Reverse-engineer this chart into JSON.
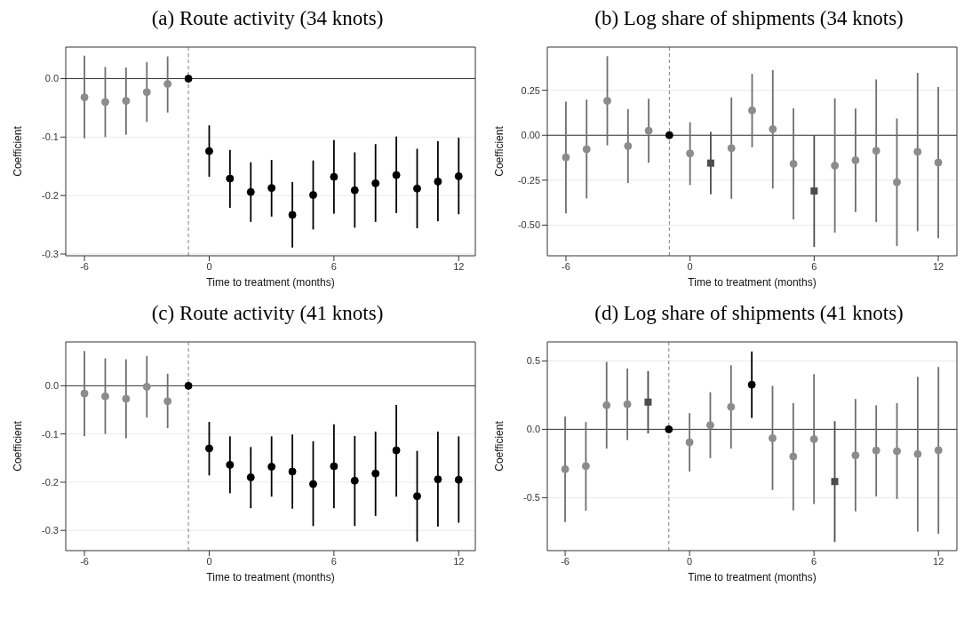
{
  "chart_data": [
    {
      "type": "scatter",
      "title": "(a) Route activity (34 knots)",
      "xlabel": "Time to treatment (months)",
      "ylabel": "Coefficient",
      "xlim": [
        -6.9,
        12.8
      ],
      "ylim": [
        -0.303,
        0.054
      ],
      "xticks": [
        -6,
        0,
        6,
        12
      ],
      "yticks": [
        {
          "value": -0.3,
          "label": "-0.3"
        },
        {
          "value": -0.2,
          "label": "-0.2"
        },
        {
          "value": -0.1,
          "label": "-0.1"
        },
        {
          "value": 0,
          "label": "0.0"
        }
      ],
      "grid": "y",
      "ref_lines": [
        {
          "axis": "x",
          "value": -1,
          "color": "#808080",
          "line_style": "dashed"
        },
        {
          "axis": "y",
          "value": 0,
          "color": "#333333",
          "line_style": "solid"
        }
      ],
      "series": [
        {
          "color": "#8c8c8c",
          "marker": "circle",
          "x": [
            -6,
            -5,
            -4,
            -3,
            -2
          ],
          "values": [
            -0.032,
            -0.04,
            -0.038,
            -0.023,
            -0.009
          ],
          "errors": [
            [
              -0.102,
              0.039
            ],
            [
              -0.1,
              0.02
            ],
            [
              -0.096,
              0.019
            ],
            [
              -0.074,
              0.028
            ],
            [
              -0.058,
              0.038
            ]
          ]
        },
        {
          "color": "#000000",
          "marker": "circle",
          "x": [
            -1,
            0,
            1,
            2,
            3,
            4,
            5,
            6,
            7,
            8,
            9,
            10,
            11,
            12
          ],
          "values": [
            0,
            -0.124,
            -0.171,
            -0.194,
            -0.187,
            -0.233,
            -0.199,
            -0.168,
            -0.191,
            -0.179,
            -0.165,
            -0.188,
            -0.176,
            -0.167
          ],
          "errors": [
            null,
            [
              -0.168,
              -0.08
            ],
            [
              -0.221,
              -0.122
            ],
            [
              -0.245,
              -0.143
            ],
            [
              -0.236,
              -0.139
            ],
            [
              -0.289,
              -0.177
            ],
            [
              -0.258,
              -0.14
            ],
            [
              -0.231,
              -0.105
            ],
            [
              -0.255,
              -0.126
            ],
            [
              -0.245,
              -0.112
            ],
            [
              -0.23,
              -0.099
            ],
            [
              -0.256,
              -0.12
            ],
            [
              -0.244,
              -0.107
            ],
            [
              -0.232,
              -0.101
            ]
          ]
        }
      ]
    },
    {
      "type": "scatter",
      "title": "(b) Log share of shipments (34 knots)",
      "xlabel": "Time to treatment (months)",
      "ylabel": "Coefficient",
      "xlim": [
        -6.9,
        12.9
      ],
      "ylim": [
        -0.67,
        0.49
      ],
      "xticks": [
        -6,
        0,
        6,
        12
      ],
      "yticks": [
        {
          "value": -0.5,
          "label": "-0.50"
        },
        {
          "value": -0.25,
          "label": "-0.25"
        },
        {
          "value": 0,
          "label": "0.00"
        },
        {
          "value": 0.25,
          "label": "0.25"
        }
      ],
      "grid": "y",
      "ref_lines": [
        {
          "axis": "x",
          "value": -1,
          "color": "#808080",
          "line_style": "dashed"
        },
        {
          "axis": "y",
          "value": 0,
          "color": "#333333",
          "line_style": "solid"
        }
      ],
      "series": [
        {
          "color": "#8c8c8c",
          "marker": "circle",
          "x": [
            -6,
            -5,
            -4,
            -3,
            -2,
            0,
            2,
            3,
            4,
            5,
            7,
            8,
            9,
            10,
            11,
            12
          ],
          "values": [
            -0.123,
            -0.078,
            0.191,
            -0.06,
            0.025,
            -0.101,
            -0.072,
            0.138,
            0.034,
            -0.159,
            -0.169,
            -0.139,
            -0.086,
            -0.261,
            -0.092,
            -0.152
          ],
          "errors": [
            [
              -0.434,
              0.187
            ],
            [
              -0.351,
              0.198
            ],
            [
              -0.056,
              0.439
            ],
            [
              -0.266,
              0.145
            ],
            [
              -0.153,
              0.203
            ],
            [
              -0.277,
              0.072
            ],
            [
              -0.353,
              0.21
            ],
            [
              -0.067,
              0.341
            ],
            [
              -0.296,
              0.362
            ],
            [
              -0.467,
              0.15
            ],
            [
              -0.541,
              0.205
            ],
            [
              -0.427,
              0.148
            ],
            [
              -0.483,
              0.31
            ],
            [
              -0.616,
              0.093
            ],
            [
              -0.534,
              0.347
            ],
            [
              -0.573,
              0.268
            ]
          ]
        },
        {
          "color": "#000000",
          "marker": "circle",
          "x": [
            -1
          ],
          "values": [
            0
          ],
          "errors": [
            null
          ]
        },
        {
          "color": "#4d4d4d",
          "marker": "square",
          "x": [
            1,
            6
          ],
          "values": [
            -0.155,
            -0.31
          ],
          "errors": [
            [
              -0.328,
              0.019
            ],
            [
              -0.621,
              0.0
            ]
          ]
        }
      ]
    },
    {
      "type": "scatter",
      "title": "(c) Route activity (41 knots)",
      "xlabel": "Time to treatment (months)",
      "ylabel": "Coefficient",
      "xlim": [
        -6.9,
        12.8
      ],
      "ylim": [
        -0.342,
        0.091
      ],
      "xticks": [
        -6,
        0,
        6,
        12
      ],
      "yticks": [
        {
          "value": -0.3,
          "label": "-0.3"
        },
        {
          "value": -0.2,
          "label": "-0.2"
        },
        {
          "value": -0.1,
          "label": "-0.1"
        },
        {
          "value": 0,
          "label": "0.0"
        }
      ],
      "grid": "y",
      "ref_lines": [
        {
          "axis": "x",
          "value": -1,
          "color": "#808080",
          "line_style": "dashed"
        },
        {
          "axis": "y",
          "value": 0,
          "color": "#333333",
          "line_style": "solid"
        }
      ],
      "series": [
        {
          "color": "#8c8c8c",
          "marker": "circle",
          "x": [
            -6,
            -5,
            -4,
            -3,
            -2
          ],
          "values": [
            -0.016,
            -0.022,
            -0.027,
            -0.002,
            -0.032
          ],
          "errors": [
            [
              -0.105,
              0.072
            ],
            [
              -0.1,
              0.057
            ],
            [
              -0.109,
              0.055
            ],
            [
              -0.066,
              0.062
            ],
            [
              -0.088,
              0.025
            ]
          ]
        },
        {
          "color": "#000000",
          "marker": "circle",
          "x": [
            -1,
            0,
            1,
            2,
            3,
            4,
            5,
            6,
            7,
            8,
            9,
            10,
            11,
            12
          ],
          "values": [
            0,
            -0.13,
            -0.164,
            -0.19,
            -0.168,
            -0.178,
            -0.204,
            -0.167,
            -0.197,
            -0.182,
            -0.134,
            -0.229,
            -0.194,
            -0.195
          ],
          "errors": [
            null,
            [
              -0.186,
              -0.075
            ],
            [
              -0.223,
              -0.105
            ],
            [
              -0.254,
              -0.127
            ],
            [
              -0.23,
              -0.105
            ],
            [
              -0.255,
              -0.101
            ],
            [
              -0.291,
              -0.115
            ],
            [
              -0.254,
              -0.08
            ],
            [
              -0.291,
              -0.104
            ],
            [
              -0.27,
              -0.095
            ],
            [
              -0.23,
              -0.04
            ],
            [
              -0.323,
              -0.135
            ],
            [
              -0.292,
              -0.095
            ],
            [
              -0.284,
              -0.105
            ]
          ]
        }
      ]
    },
    {
      "type": "scatter",
      "title": "(d) Log share of shipments (41 knots)",
      "xlabel": "Time to treatment (months)",
      "ylabel": "Coefficient",
      "xlim": [
        -6.86,
        12.89
      ],
      "ylim": [
        -0.887,
        0.639
      ],
      "xticks": [
        -6,
        0,
        6,
        12
      ],
      "yticks": [
        {
          "value": -0.5,
          "label": "-0.5"
        },
        {
          "value": 0,
          "label": "0.0"
        },
        {
          "value": 0.5,
          "label": "0.5"
        }
      ],
      "grid": "y",
      "ref_lines": [
        {
          "axis": "x",
          "value": -1,
          "color": "#808080",
          "line_style": "dashed"
        },
        {
          "axis": "y",
          "value": 0,
          "color": "#333333",
          "line_style": "solid"
        }
      ],
      "series": [
        {
          "color": "#8c8c8c",
          "marker": "circle",
          "x": [
            -6,
            -5,
            -4,
            -3,
            0,
            1,
            2,
            4,
            5,
            6,
            8,
            9,
            10,
            11,
            12
          ],
          "values": [
            -0.292,
            -0.269,
            0.176,
            0.183,
            -0.095,
            0.03,
            0.164,
            -0.065,
            -0.199,
            -0.072,
            -0.19,
            -0.155,
            -0.16,
            -0.181,
            -0.153
          ],
          "errors": [
            [
              -0.678,
              0.093
            ],
            [
              -0.595,
              0.053
            ],
            [
              -0.141,
              0.493
            ],
            [
              -0.079,
              0.444
            ],
            [
              -0.308,
              0.118
            ],
            [
              -0.211,
              0.271
            ],
            [
              -0.141,
              0.468
            ],
            [
              -0.444,
              0.317
            ],
            [
              -0.593,
              0.192
            ],
            [
              -0.546,
              0.403
            ],
            [
              -0.6,
              0.222
            ],
            [
              -0.491,
              0.176
            ],
            [
              -0.509,
              0.192
            ],
            [
              -0.748,
              0.384
            ],
            [
              -0.764,
              0.456
            ]
          ]
        },
        {
          "color": "#000000",
          "marker": "circle",
          "x": [
            -1,
            3
          ],
          "values": [
            0,
            0.326
          ],
          "errors": [
            null,
            [
              0.083,
              0.569
            ]
          ]
        },
        {
          "color": "#4d4d4d",
          "marker": "square",
          "x": [
            -2,
            7
          ],
          "values": [
            0.199,
            -0.382
          ],
          "errors": [
            [
              -0.03,
              0.426
            ],
            [
              -0.824,
              0.06
            ]
          ]
        }
      ]
    }
  ]
}
